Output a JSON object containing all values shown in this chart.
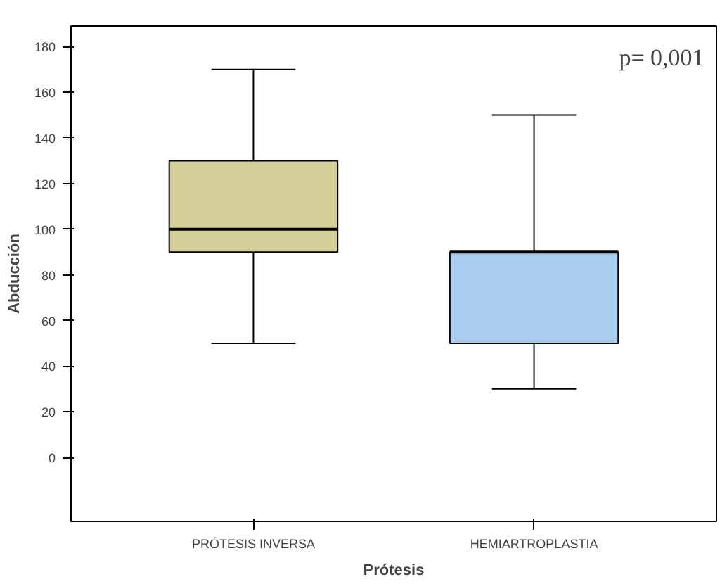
{
  "chart_data": {
    "type": "box",
    "xlabel": "Prótesis",
    "ylabel": "Abducción",
    "categories": [
      "PRÓTESIS INVERSA",
      "HEMIARTROPLASTIA"
    ],
    "boxes": [
      {
        "low": 50,
        "q1": 90,
        "median": 100,
        "q3": 130,
        "high": 170
      },
      {
        "low": 30,
        "q1": 50,
        "median": 90,
        "q3": 90,
        "high": 150
      }
    ],
    "colors": [
      "#d4cf98",
      "#a9cdef"
    ],
    "ylim": [
      -28,
      189
    ],
    "yticks": [
      0,
      20,
      40,
      60,
      80,
      100,
      120,
      140,
      160,
      180
    ],
    "annotations": [
      "p= 0,001"
    ],
    "grid": false
  }
}
